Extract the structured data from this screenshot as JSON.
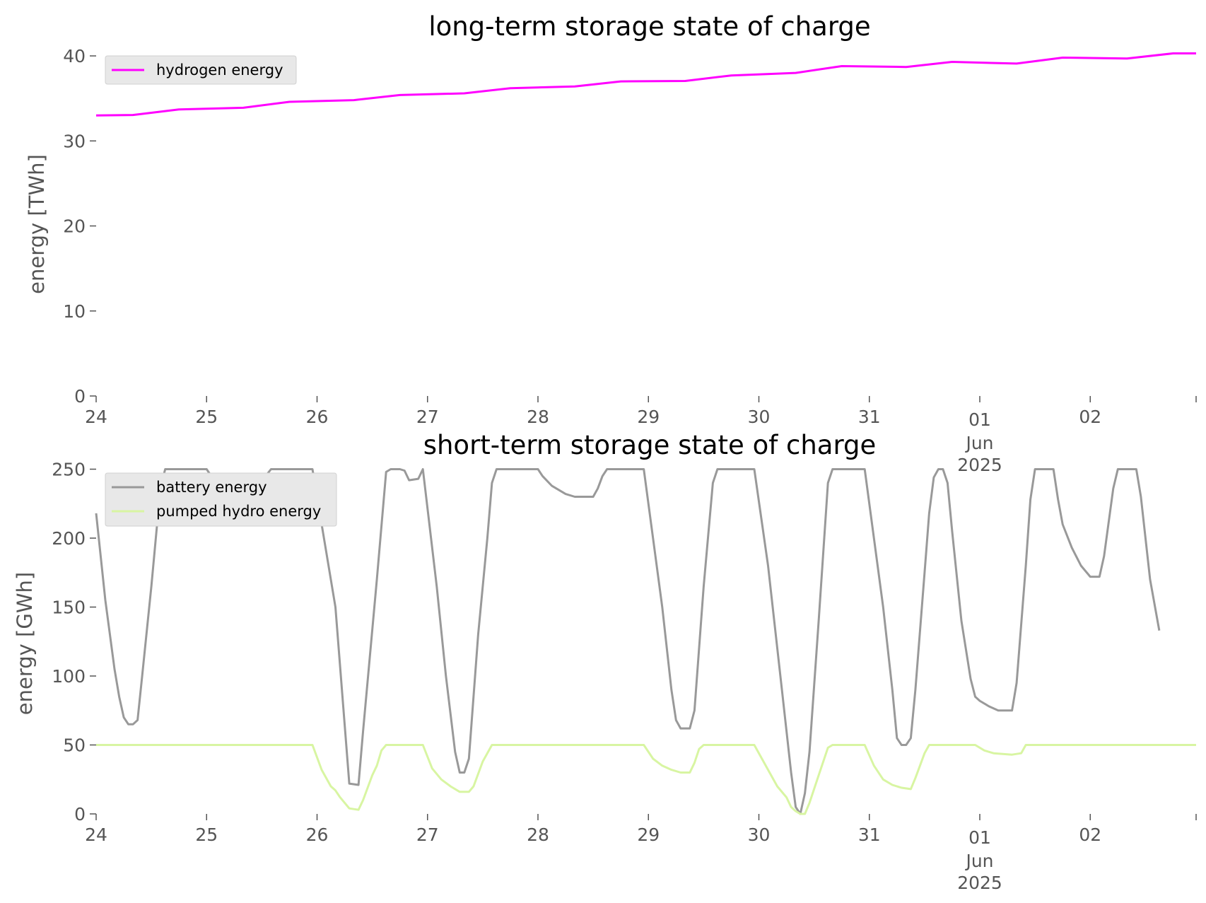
{
  "chart_data": [
    {
      "type": "line",
      "title": "long-term storage state of charge",
      "xlabel": "",
      "ylabel": "energy [TWh]",
      "ylim": [
        0,
        42.5
      ],
      "yticks": [
        0,
        10,
        20,
        30,
        40
      ],
      "xlim": [
        "2025-05-24T00:00",
        "2025-06-02T23:00"
      ],
      "xticks": [
        {
          "date": "2025-05-24",
          "label": "24"
        },
        {
          "date": "2025-05-25",
          "label": "25"
        },
        {
          "date": "2025-05-26",
          "label": "26"
        },
        {
          "date": "2025-05-27",
          "label": "27"
        },
        {
          "date": "2025-05-28",
          "label": "28"
        },
        {
          "date": "2025-05-29",
          "label": "29"
        },
        {
          "date": "2025-05-30",
          "label": "30"
        },
        {
          "date": "2025-05-31",
          "label": "31"
        },
        {
          "date": "2025-06-01",
          "label": "01",
          "sublabel": "Jun",
          "sublabel2": "2025"
        },
        {
          "date": "2025-06-02",
          "label": "02"
        }
      ],
      "grid": false,
      "legend": "top-left",
      "series": [
        {
          "name": "hydrogen energy",
          "color": "#ff00ff",
          "points": [
            [
              "2025-05-24T00:00",
              33.0
            ],
            [
              "2025-05-24T08:00",
              33.05
            ],
            [
              "2025-05-24T18:00",
              33.7
            ],
            [
              "2025-05-25T08:00",
              33.9
            ],
            [
              "2025-05-25T18:00",
              34.6
            ],
            [
              "2025-05-26T08:00",
              34.8
            ],
            [
              "2025-05-26T18:00",
              35.4
            ],
            [
              "2025-05-27T08:00",
              35.6
            ],
            [
              "2025-05-27T18:00",
              36.2
            ],
            [
              "2025-05-28T08:00",
              36.4
            ],
            [
              "2025-05-28T18:00",
              37.0
            ],
            [
              "2025-05-29T08:00",
              37.05
            ],
            [
              "2025-05-29T18:00",
              37.7
            ],
            [
              "2025-05-30T08:00",
              38.0
            ],
            [
              "2025-05-30T18:00",
              38.8
            ],
            [
              "2025-05-31T08:00",
              38.7
            ],
            [
              "2025-05-31T18:00",
              39.3
            ],
            [
              "2025-06-01T08:00",
              39.1
            ],
            [
              "2025-06-01T18:00",
              39.8
            ],
            [
              "2025-06-02T08:00",
              39.7
            ],
            [
              "2025-06-02T18:00",
              40.3
            ],
            [
              "2025-06-02T23:00",
              40.3
            ]
          ]
        }
      ]
    },
    {
      "type": "line",
      "title": "short-term storage state of charge",
      "xlabel": "",
      "ylabel": "energy [GWh]",
      "ylim": [
        0,
        260
      ],
      "yticks": [
        0,
        50,
        100,
        150,
        200,
        250
      ],
      "xlim": [
        "2025-05-24T00:00",
        "2025-06-02T23:00"
      ],
      "xticks": [
        {
          "date": "2025-05-24",
          "label": "24"
        },
        {
          "date": "2025-05-25",
          "label": "25"
        },
        {
          "date": "2025-05-26",
          "label": "26"
        },
        {
          "date": "2025-05-27",
          "label": "27"
        },
        {
          "date": "2025-05-28",
          "label": "28"
        },
        {
          "date": "2025-05-29",
          "label": "29"
        },
        {
          "date": "2025-05-30",
          "label": "30"
        },
        {
          "date": "2025-05-31",
          "label": "31"
        },
        {
          "date": "2025-06-01",
          "label": "01",
          "sublabel": "Jun",
          "sublabel2": "2025"
        },
        {
          "date": "2025-06-02",
          "label": "02"
        }
      ],
      "grid": false,
      "legend": "top-left",
      "series": [
        {
          "name": "battery energy",
          "color": "#999999",
          "points": [
            [
              "2025-05-24T00:00",
              218
            ],
            [
              "2025-05-24T02:00",
              155
            ],
            [
              "2025-05-24T04:00",
              105
            ],
            [
              "2025-05-24T05:00",
              85
            ],
            [
              "2025-05-24T06:00",
              70
            ],
            [
              "2025-05-24T07:00",
              65
            ],
            [
              "2025-05-24T08:00",
              65
            ],
            [
              "2025-05-24T09:00",
              68
            ],
            [
              "2025-05-24T10:00",
              100
            ],
            [
              "2025-05-24T12:00",
              165
            ],
            [
              "2025-05-24T14:00",
              237
            ],
            [
              "2025-05-24T15:00",
              250
            ],
            [
              "2025-05-25T00:00",
              250
            ],
            [
              "2025-05-25T02:00",
              240
            ],
            [
              "2025-05-25T06:00",
              232
            ],
            [
              "2025-05-25T10:00",
              233
            ],
            [
              "2025-05-25T14:00",
              250
            ],
            [
              "2025-05-25T23:00",
              250
            ],
            [
              "2025-05-26T04:00",
              150
            ],
            [
              "2025-05-26T07:00",
              22
            ],
            [
              "2025-05-26T09:00",
              21
            ],
            [
              "2025-05-26T10:00",
              60
            ],
            [
              "2025-05-26T13:00",
              170
            ],
            [
              "2025-05-26T15:00",
              248
            ],
            [
              "2025-05-26T16:00",
              250
            ],
            [
              "2025-05-26T18:00",
              250
            ],
            [
              "2025-05-26T19:00",
              249
            ],
            [
              "2025-05-26T20:00",
              242
            ],
            [
              "2025-05-26T22:00",
              243
            ],
            [
              "2025-05-26T23:00",
              250
            ],
            [
              "2025-05-27T02:00",
              165
            ],
            [
              "2025-05-27T04:00",
              100
            ],
            [
              "2025-05-27T06:00",
              45
            ],
            [
              "2025-05-27T07:00",
              30
            ],
            [
              "2025-05-27T08:00",
              30
            ],
            [
              "2025-05-27T09:00",
              40
            ],
            [
              "2025-05-27T11:00",
              130
            ],
            [
              "2025-05-27T13:00",
              200
            ],
            [
              "2025-05-27T14:00",
              240
            ],
            [
              "2025-05-27T15:00",
              250
            ],
            [
              "2025-05-28T00:00",
              250
            ],
            [
              "2025-05-28T01:00",
              245
            ],
            [
              "2025-05-28T03:00",
              238
            ],
            [
              "2025-05-28T06:00",
              232
            ],
            [
              "2025-05-28T08:00",
              230
            ],
            [
              "2025-05-28T12:00",
              230
            ],
            [
              "2025-05-28T13:00",
              236
            ],
            [
              "2025-05-28T14:00",
              245
            ],
            [
              "2025-05-28T15:00",
              250
            ],
            [
              "2025-05-28T23:00",
              250
            ],
            [
              "2025-05-29T03:00",
              150
            ],
            [
              "2025-05-29T05:00",
              90
            ],
            [
              "2025-05-29T06:00",
              68
            ],
            [
              "2025-05-29T07:00",
              62
            ],
            [
              "2025-05-29T09:00",
              62
            ],
            [
              "2025-05-29T10:00",
              75
            ],
            [
              "2025-05-29T12:00",
              165
            ],
            [
              "2025-05-29T14:00",
              240
            ],
            [
              "2025-05-29T15:00",
              250
            ],
            [
              "2025-05-29T23:00",
              250
            ],
            [
              "2025-05-30T02:00",
              180
            ],
            [
              "2025-05-30T05:00",
              90
            ],
            [
              "2025-05-30T07:00",
              30
            ],
            [
              "2025-05-30T08:00",
              5
            ],
            [
              "2025-05-30T09:00",
              0
            ],
            [
              "2025-05-30T10:00",
              15
            ],
            [
              "2025-05-30T11:00",
              45
            ],
            [
              "2025-05-30T13:00",
              140
            ],
            [
              "2025-05-30T15:00",
              240
            ],
            [
              "2025-05-30T16:00",
              250
            ],
            [
              "2025-05-30T23:00",
              250
            ],
            [
              "2025-05-31T03:00",
              150
            ],
            [
              "2025-05-31T05:00",
              90
            ],
            [
              "2025-05-31T06:00",
              55
            ],
            [
              "2025-05-31T07:00",
              50
            ],
            [
              "2025-05-31T08:00",
              50
            ],
            [
              "2025-05-31T09:00",
              55
            ],
            [
              "2025-05-31T10:00",
              90
            ],
            [
              "2025-05-31T12:00",
              175
            ],
            [
              "2025-05-31T13:00",
              218
            ],
            [
              "2025-05-31T14:00",
              244
            ],
            [
              "2025-05-31T15:00",
              250
            ],
            [
              "2025-05-31T16:00",
              250
            ],
            [
              "2025-05-31T17:00",
              240
            ],
            [
              "2025-05-31T18:00",
              205
            ],
            [
              "2025-05-31T20:00",
              140
            ],
            [
              "2025-05-31T22:00",
              98
            ],
            [
              "2025-05-31T23:00",
              85
            ],
            [
              "2025-06-01T00:00",
              82
            ],
            [
              "2025-06-01T02:00",
              78
            ],
            [
              "2025-06-01T04:00",
              75
            ],
            [
              "2025-06-01T07:00",
              75
            ],
            [
              "2025-06-01T08:00",
              95
            ],
            [
              "2025-06-01T10:00",
              180
            ],
            [
              "2025-06-01T11:00",
              228
            ],
            [
              "2025-06-01T12:00",
              250
            ],
            [
              "2025-06-01T15:00",
              250
            ],
            [
              "2025-06-01T16:00",
              250
            ],
            [
              "2025-06-01T17:00",
              228
            ],
            [
              "2025-06-01T18:00",
              210
            ],
            [
              "2025-06-01T20:00",
              193
            ],
            [
              "2025-06-01T22:00",
              180
            ],
            [
              "2025-06-02T00:00",
              172
            ],
            [
              "2025-06-02T02:00",
              172
            ],
            [
              "2025-06-02T03:00",
              187
            ],
            [
              "2025-06-02T05:00",
              236
            ],
            [
              "2025-06-02T06:00",
              250
            ],
            [
              "2025-06-02T10:00",
              250
            ],
            [
              "2025-06-02T11:00",
              230
            ],
            [
              "2025-06-02T13:00",
              170
            ],
            [
              "2025-06-02T15:00",
              133
            ]
          ]
        },
        {
          "name": "pumped hydro energy",
          "color": "#d8f5a2",
          "points": [
            [
              "2025-05-24T00:00",
              50
            ],
            [
              "2025-05-25T23:00",
              50
            ],
            [
              "2025-05-26T01:00",
              32
            ],
            [
              "2025-05-26T03:00",
              20
            ],
            [
              "2025-05-26T04:00",
              17
            ],
            [
              "2025-05-26T05:00",
              12
            ],
            [
              "2025-05-26T07:00",
              4
            ],
            [
              "2025-05-26T09:00",
              3
            ],
            [
              "2025-05-26T10:00",
              10
            ],
            [
              "2025-05-26T12:00",
              28
            ],
            [
              "2025-05-26T13:00",
              35
            ],
            [
              "2025-05-26T14:00",
              46
            ],
            [
              "2025-05-26T15:00",
              50
            ],
            [
              "2025-05-26T23:00",
              50
            ],
            [
              "2025-05-27T01:00",
              33
            ],
            [
              "2025-05-27T03:00",
              25
            ],
            [
              "2025-05-27T05:00",
              20
            ],
            [
              "2025-05-27T07:00",
              16
            ],
            [
              "2025-05-27T09:00",
              16
            ],
            [
              "2025-05-27T10:00",
              20
            ],
            [
              "2025-05-27T12:00",
              38
            ],
            [
              "2025-05-27T14:00",
              50
            ],
            [
              "2025-05-28T23:00",
              50
            ],
            [
              "2025-05-29T01:00",
              40
            ],
            [
              "2025-05-29T03:00",
              35
            ],
            [
              "2025-05-29T05:00",
              32
            ],
            [
              "2025-05-29T07:00",
              30
            ],
            [
              "2025-05-29T09:00",
              30
            ],
            [
              "2025-05-29T10:00",
              37
            ],
            [
              "2025-05-29T11:00",
              47
            ],
            [
              "2025-05-29T12:00",
              50
            ],
            [
              "2025-05-29T23:00",
              50
            ],
            [
              "2025-05-30T02:00",
              32
            ],
            [
              "2025-05-30T04:00",
              20
            ],
            [
              "2025-05-30T06:00",
              12
            ],
            [
              "2025-05-30T07:00",
              5
            ],
            [
              "2025-05-30T08:00",
              2
            ],
            [
              "2025-05-30T09:00",
              0
            ],
            [
              "2025-05-30T10:00",
              0
            ],
            [
              "2025-05-30T11:00",
              8
            ],
            [
              "2025-05-30T13:00",
              28
            ],
            [
              "2025-05-30T15:00",
              48
            ],
            [
              "2025-05-30T16:00",
              50
            ],
            [
              "2025-05-30T23:00",
              50
            ],
            [
              "2025-05-31T01:00",
              35
            ],
            [
              "2025-05-31T03:00",
              25
            ],
            [
              "2025-05-31T05:00",
              21
            ],
            [
              "2025-05-31T07:00",
              19
            ],
            [
              "2025-05-31T09:00",
              18
            ],
            [
              "2025-05-31T10:00",
              26
            ],
            [
              "2025-05-31T12:00",
              44
            ],
            [
              "2025-05-31T13:00",
              50
            ],
            [
              "2025-05-31T23:00",
              50
            ],
            [
              "2025-06-01T01:00",
              46
            ],
            [
              "2025-06-01T03:00",
              44
            ],
            [
              "2025-06-01T07:00",
              43
            ],
            [
              "2025-06-01T09:00",
              44
            ],
            [
              "2025-06-01T10:00",
              50
            ],
            [
              "2025-06-02T23:00",
              50
            ]
          ]
        }
      ]
    }
  ]
}
